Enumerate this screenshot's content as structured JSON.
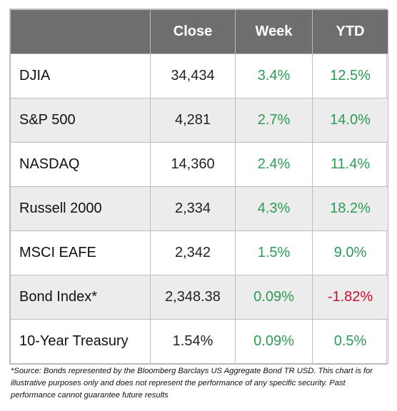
{
  "header": {
    "blank": "",
    "close": "Close",
    "week": "Week",
    "ytd": "YTD"
  },
  "rows": [
    {
      "name": "DJIA",
      "close": "34,434",
      "week": "3.4%",
      "ytd": "12.5%"
    },
    {
      "name": "S&P 500",
      "close": "4,281",
      "week": "2.7%",
      "ytd": "14.0%"
    },
    {
      "name": "NASDAQ",
      "close": "14,360",
      "week": "2.4%",
      "ytd": "11.4%"
    },
    {
      "name": "Russell 2000",
      "close": "2,334",
      "week": "4.3%",
      "ytd": "18.2%"
    },
    {
      "name": "MSCI EAFE",
      "close": "2,342",
      "week": "1.5%",
      "ytd": "9.0%"
    },
    {
      "name": "Bond Index*",
      "close": "2,348.38",
      "week": "0.09%",
      "ytd": "-1.82%"
    },
    {
      "name": "10-Year Treasury",
      "close": "1.54%",
      "week": "0.09%",
      "ytd": "0.5%"
    }
  ],
  "colors": {
    "header_bg": "#6e6e6e",
    "positive": "#2e9a54",
    "negative": "#c8102e",
    "alt_row": "#ececec"
  },
  "footnote": "*Source: Bonds represented by the Bloomberg Barclays US Aggregate Bond TR USD.  This chart is for illustrative purposes only and does not represent the performance of any specific security. Past performance cannot guarantee future results"
}
